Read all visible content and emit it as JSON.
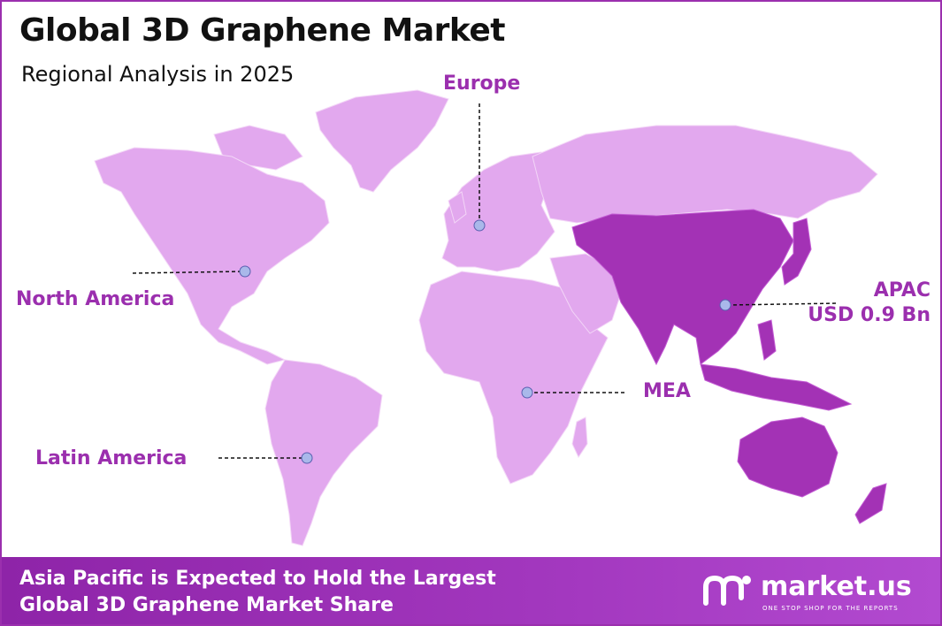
{
  "header": {
    "title": "Global 3D Graphene Market",
    "subtitle": "Regional Analysis in 2025"
  },
  "regions": [
    {
      "name": "North America"
    },
    {
      "name": "Europe"
    },
    {
      "name": "APAC",
      "value": "USD 0.9 Bn"
    },
    {
      "name": "MEA"
    },
    {
      "name": "Latin America"
    }
  ],
  "footer": {
    "line1": "Asia Pacific is Expected to Hold the Largest",
    "line2": "Global 3D Graphene Market Share"
  },
  "brand": {
    "name": "market.us",
    "tagline": "ONE STOP SHOP FOR THE REPORTS"
  },
  "colors": {
    "light_region": "#e2a8ee",
    "highlight_region": "#a332b5",
    "accent": "#9b2fae",
    "marker": "#a9b8ea"
  }
}
